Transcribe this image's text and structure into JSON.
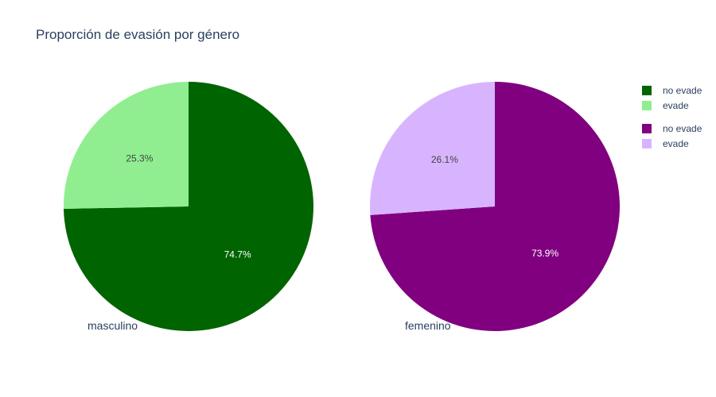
{
  "title": "Proporción de evasión por género",
  "chart_data": [
    {
      "type": "pie",
      "name": "masculino",
      "labels": [
        "no evade",
        "evade"
      ],
      "values": [
        74.7,
        25.3
      ],
      "value_labels": [
        "74.7%",
        "25.3%"
      ],
      "colors": [
        "#006400",
        "#90ee90"
      ],
      "label_colors": [
        "#ffffff",
        "#444444"
      ],
      "direction": "clockwise",
      "start": "top"
    },
    {
      "type": "pie",
      "name": "femenino",
      "labels": [
        "no evade",
        "evade"
      ],
      "values": [
        73.9,
        26.1
      ],
      "value_labels": [
        "73.9%",
        "26.1%"
      ],
      "colors": [
        "#800080",
        "#d8b4fe"
      ],
      "label_colors": [
        "#ffffff",
        "#444444"
      ],
      "direction": "clockwise",
      "start": "top"
    }
  ],
  "legend": {
    "placement": "right",
    "groups": [
      {
        "items": [
          {
            "label": "no evade",
            "color": "#006400"
          },
          {
            "label": "evade",
            "color": "#90ee90"
          }
        ]
      },
      {
        "items": [
          {
            "label": "no evade",
            "color": "#800080"
          },
          {
            "label": "evade",
            "color": "#d8b4fe"
          }
        ]
      }
    ]
  }
}
